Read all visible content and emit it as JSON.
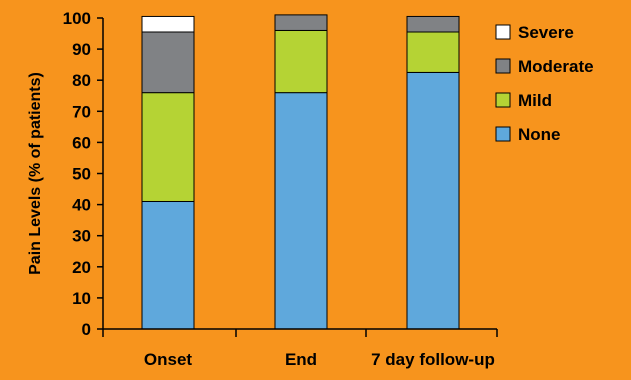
{
  "colors": {
    "background": "#F7941D",
    "Severe": "#FFFFFF",
    "Moderate": "#808285",
    "Mild": "#B5D334",
    "None": "#5FA8DC",
    "stroke": "#000000"
  },
  "chart_data": {
    "type": "bar",
    "stacked": true,
    "title": "",
    "xlabel": "",
    "ylabel": "Pain Levels (% of patients)",
    "categories": [
      "Onset",
      "End",
      "7 day follow-up"
    ],
    "series": [
      {
        "name": "None",
        "values": [
          41,
          76,
          82.5
        ]
      },
      {
        "name": "Mild",
        "values": [
          35,
          20,
          13
        ]
      },
      {
        "name": "Moderate",
        "values": [
          19.5,
          5,
          5
        ]
      },
      {
        "name": "Severe",
        "values": [
          5,
          0,
          0
        ]
      }
    ],
    "ylim": [
      0,
      100
    ],
    "yticks": [
      0,
      10,
      20,
      30,
      40,
      50,
      60,
      70,
      80,
      90,
      100
    ],
    "grid": false,
    "legend": {
      "position": "right",
      "entries": [
        "Severe",
        "Moderate",
        "Mild",
        "None"
      ]
    }
  }
}
